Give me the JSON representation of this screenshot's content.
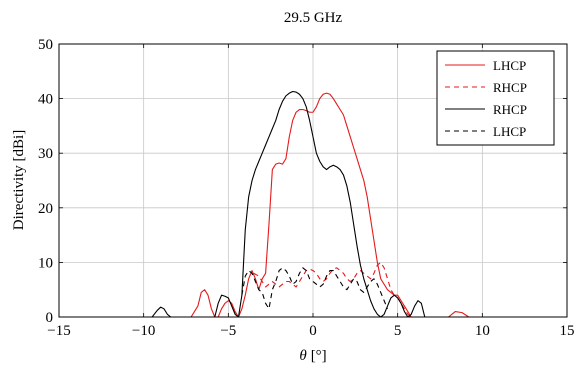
{
  "chart_data": {
    "type": "line",
    "title": "29.5 GHz",
    "xlabel_symbol": "θ",
    "xlabel_unit": "[°]",
    "ylabel": "Directivity [dBi]",
    "xlim": [
      -15,
      15
    ],
    "ylim": [
      0,
      50
    ],
    "xticks": [
      -15,
      -10,
      -5,
      0,
      5,
      10,
      15
    ],
    "xtick_labels": [
      "−15",
      "−10",
      "−5",
      "0",
      "5",
      "10",
      "15"
    ],
    "yticks": [
      0,
      10,
      20,
      30,
      40,
      50
    ],
    "ytick_labels": [
      "0",
      "10",
      "20",
      "30",
      "40",
      "50"
    ],
    "grid": true,
    "legend_position": "top-right",
    "series": [
      {
        "name": "LHCP",
        "color": "#e41a1c",
        "dash": "solid",
        "x": [
          -7.2,
          -6.8,
          -6.6,
          -6.4,
          -6.2,
          -6.0,
          -5.8,
          -5.6,
          -5.4,
          -5.2,
          -5.0,
          -4.8,
          -4.6,
          -4.4,
          -4.2,
          -4.0,
          -3.8,
          -3.6,
          -3.4,
          -3.2,
          -3.0,
          -2.8,
          -2.6,
          -2.4,
          -2.2,
          -2.0,
          -1.8,
          -1.6,
          -1.4,
          -1.2,
          -1.0,
          -0.8,
          -0.6,
          -0.4,
          -0.2,
          0.0,
          0.2,
          0.4,
          0.6,
          0.8,
          1.0,
          1.2,
          1.4,
          1.6,
          1.8,
          2.0,
          2.2,
          2.4,
          2.6,
          2.8,
          3.0,
          3.2,
          3.4,
          3.6,
          3.8,
          4.0,
          4.2,
          4.4,
          4.6,
          4.8,
          5.0,
          5.2,
          5.4,
          5.6,
          5.8,
          6.0,
          8.0,
          8.4,
          8.8,
          9.2
        ],
        "y": [
          0.0,
          2.0,
          4.5,
          5.0,
          4.0,
          1.5,
          0.0,
          0.0,
          1.5,
          2.5,
          3.0,
          2.5,
          1.0,
          0.0,
          1.5,
          4.0,
          7.0,
          8.5,
          7.0,
          5.0,
          7.0,
          8.0,
          17.0,
          27.0,
          28.0,
          28.2,
          28.0,
          29.0,
          33.0,
          36.0,
          37.5,
          38.0,
          38.0,
          37.8,
          37.5,
          37.5,
          38.5,
          40.0,
          40.8,
          41.0,
          40.8,
          40.0,
          39.0,
          38.0,
          37.0,
          35.0,
          33.0,
          31.0,
          29.0,
          27.0,
          25.0,
          22.0,
          18.0,
          14.0,
          10.0,
          7.0,
          6.0,
          5.0,
          4.5,
          4.0,
          4.0,
          3.0,
          2.0,
          1.0,
          0.0,
          0.0,
          0.0,
          1.0,
          0.8,
          0.0
        ]
      },
      {
        "name": "RHCP",
        "color": "#e41a1c",
        "dash": "dashed",
        "x": [
          -3.5,
          -3.2,
          -3.0,
          -2.8,
          -2.6,
          -2.4,
          -2.2,
          -2.0,
          -1.8,
          -1.6,
          -1.4,
          -1.2,
          -1.0,
          -0.8,
          -0.6,
          -0.4,
          -0.2,
          0.0,
          0.2,
          0.4,
          0.6,
          0.8,
          1.0,
          1.2,
          1.4,
          1.6,
          1.8,
          2.0,
          2.2,
          2.4,
          2.6,
          2.8,
          3.0,
          3.2,
          3.4,
          3.6,
          3.8,
          4.0,
          4.2,
          4.4,
          4.6,
          4.8,
          5.0,
          5.2,
          5.4,
          5.6,
          5.8
        ],
        "y": [
          8.0,
          7.5,
          6.5,
          5.5,
          6.0,
          6.5,
          6.0,
          5.5,
          6.0,
          6.5,
          6.5,
          6.0,
          5.5,
          6.5,
          7.5,
          8.5,
          8.8,
          8.5,
          8.0,
          7.0,
          6.5,
          7.0,
          8.0,
          8.8,
          9.0,
          8.5,
          8.0,
          7.0,
          6.5,
          7.0,
          8.0,
          8.5,
          8.0,
          7.5,
          7.0,
          8.0,
          9.5,
          10.0,
          9.0,
          7.0,
          5.0,
          4.0,
          3.5,
          2.5,
          1.5,
          0.5,
          0.0
        ]
      },
      {
        "name": "RHCP",
        "color": "#000000",
        "dash": "solid",
        "x": [
          -9.5,
          -9.2,
          -9.0,
          -8.8,
          -8.6,
          -8.4,
          -5.8,
          -5.6,
          -5.4,
          -5.2,
          -5.0,
          -4.8,
          -4.6,
          -4.4,
          -4.2,
          -4.0,
          -3.8,
          -3.6,
          -3.4,
          -3.2,
          -3.0,
          -2.8,
          -2.6,
          -2.4,
          -2.2,
          -2.0,
          -1.8,
          -1.6,
          -1.4,
          -1.2,
          -1.0,
          -0.8,
          -0.6,
          -0.4,
          -0.2,
          0.0,
          0.2,
          0.4,
          0.6,
          0.8,
          1.0,
          1.2,
          1.4,
          1.6,
          1.8,
          2.0,
          2.2,
          2.4,
          2.6,
          2.8,
          3.0,
          3.2,
          3.4,
          3.6,
          3.8,
          4.0,
          4.2,
          4.4,
          4.6,
          4.8,
          5.0,
          5.2,
          5.4,
          5.6,
          5.8,
          6.0,
          6.2,
          6.4,
          6.6
        ],
        "y": [
          0.0,
          1.2,
          1.8,
          1.5,
          0.5,
          0.0,
          0.0,
          2.5,
          4.0,
          3.8,
          3.5,
          2.0,
          0.5,
          0.0,
          4.0,
          16.0,
          22.0,
          25.0,
          27.0,
          28.5,
          30.0,
          31.5,
          33.0,
          34.5,
          36.0,
          38.0,
          39.5,
          40.5,
          41.0,
          41.3,
          41.2,
          40.8,
          40.0,
          38.5,
          36.0,
          33.0,
          30.0,
          28.5,
          27.5,
          27.0,
          27.5,
          27.8,
          27.5,
          27.0,
          26.0,
          24.0,
          21.0,
          17.0,
          13.0,
          9.5,
          7.0,
          5.0,
          3.0,
          1.5,
          0.5,
          0.0,
          0.5,
          2.0,
          3.5,
          4.0,
          3.5,
          2.5,
          1.0,
          0.0,
          0.5,
          2.0,
          3.0,
          2.5,
          0.0
        ]
      },
      {
        "name": "LHCP",
        "color": "#000000",
        "dash": "dashed",
        "x": [
          -4.2,
          -4.0,
          -3.8,
          -3.6,
          -3.4,
          -3.2,
          -3.0,
          -2.8,
          -2.6,
          -2.4,
          -2.2,
          -2.0,
          -1.8,
          -1.6,
          -1.4,
          -1.2,
          -1.0,
          -0.8,
          -0.6,
          -0.4,
          -0.2,
          0.0,
          0.2,
          0.4,
          0.6,
          0.8,
          1.0,
          1.2,
          1.4,
          1.6,
          1.8,
          2.0,
          2.2,
          2.4,
          2.6,
          2.8,
          3.0,
          3.2,
          3.4,
          3.6,
          3.8,
          4.0,
          4.2,
          4.4
        ],
        "y": [
          4.0,
          7.5,
          8.5,
          8.0,
          6.5,
          5.0,
          4.5,
          2.5,
          1.5,
          5.0,
          6.5,
          8.5,
          9.0,
          8.5,
          7.5,
          6.0,
          6.5,
          8.0,
          9.0,
          8.5,
          7.0,
          6.5,
          6.0,
          5.5,
          6.0,
          7.5,
          8.5,
          8.5,
          7.5,
          6.5,
          5.5,
          5.0,
          6.0,
          7.0,
          6.5,
          5.0,
          4.5,
          5.5,
          6.5,
          7.0,
          6.0,
          4.5,
          3.0,
          1.5
        ]
      }
    ]
  }
}
